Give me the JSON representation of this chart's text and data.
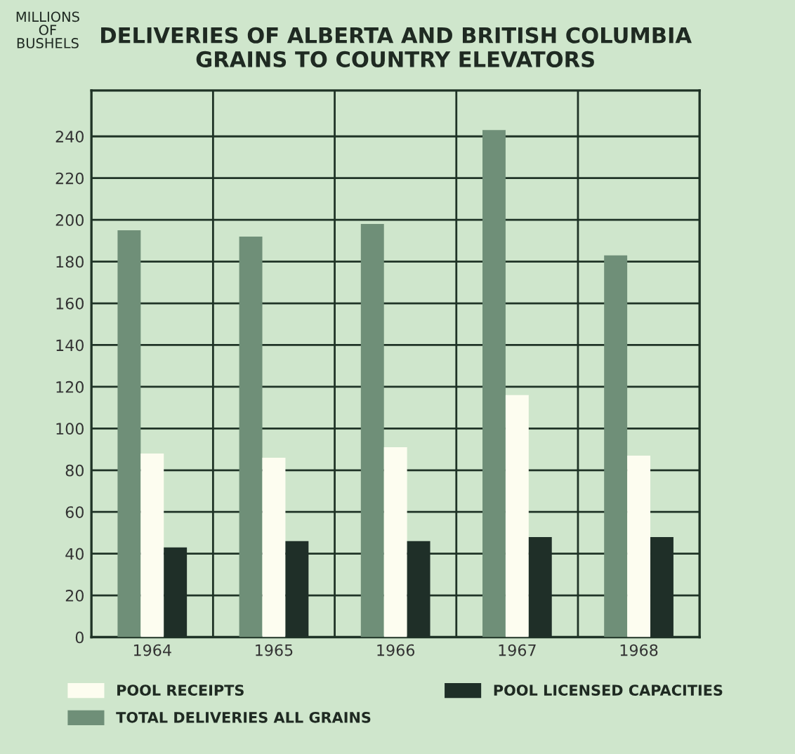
{
  "chart_data": {
    "type": "bar",
    "title": "DELIVERIES OF ALBERTA AND BRITISH COLUMBIA\nGRAINS TO COUNTRY ELEVATORS",
    "ylabel": "MILLIONS\nOF\nBUSHELS",
    "categories": [
      "1964",
      "1965",
      "1966",
      "1967",
      "1968"
    ],
    "series": [
      {
        "name": "TOTAL DELIVERIES ALL GRAINS",
        "color": "#6f8f78",
        "values": [
          195,
          192,
          198,
          243,
          183
        ]
      },
      {
        "name": "POOL RECEIPTS",
        "color": "#fdfdf0",
        "values": [
          88,
          86,
          91,
          116,
          87
        ]
      },
      {
        "name": "POOL LICENSED CAPACITIES",
        "color": "#1f2f28",
        "values": [
          43,
          46,
          46,
          48,
          48
        ]
      }
    ],
    "ylim": [
      0,
      262
    ],
    "yticks": [
      0,
      20,
      40,
      60,
      80,
      100,
      120,
      140,
      160,
      180,
      200,
      220,
      240
    ],
    "grid": true,
    "legend": "bottom"
  }
}
